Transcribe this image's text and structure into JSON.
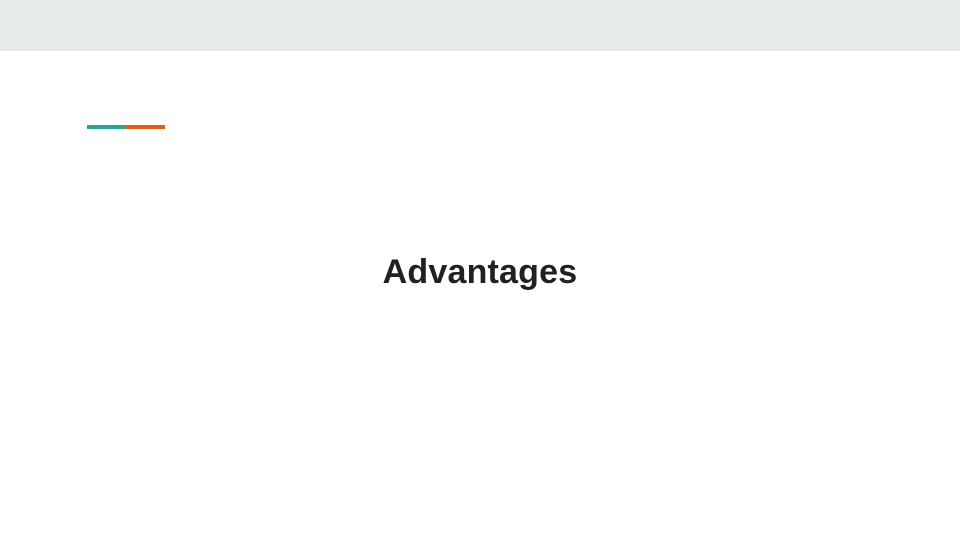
{
  "slide": {
    "title": "Advantages"
  },
  "colors": {
    "top_band": "#e8ebec",
    "accent_teal": "#26a69a",
    "accent_orange": "#e0620f",
    "title_text": "#212121"
  }
}
